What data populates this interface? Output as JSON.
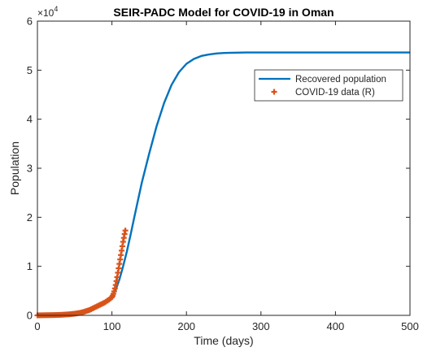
{
  "chart_data": {
    "type": "line",
    "title": "SEIR-PADC Model for COVID-19 in Oman",
    "xlabel": "Time (days)",
    "ylabel": "Population",
    "xlim": [
      0,
      500
    ],
    "ylim": [
      0,
      60000
    ],
    "x_ticks": [
      0,
      100,
      200,
      300,
      400,
      500
    ],
    "x_tick_labels": [
      "0",
      "100",
      "200",
      "300",
      "400",
      "500"
    ],
    "y_ticks": [
      0,
      10000,
      20000,
      30000,
      40000,
      50000,
      60000
    ],
    "y_tick_labels": [
      "0",
      "1",
      "2",
      "3",
      "4",
      "5",
      "6"
    ],
    "y_multiplier": {
      "base": "×10",
      "exponent": "4"
    },
    "grid": false,
    "legend_position": "top-right",
    "series": [
      {
        "name": "Recovered population",
        "style": "line",
        "color": "#0072BD",
        "x": [
          0,
          20,
          40,
          60,
          70,
          80,
          90,
          95,
          100,
          105,
          110,
          115,
          120,
          125,
          130,
          140,
          150,
          160,
          170,
          180,
          190,
          200,
          210,
          220,
          230,
          240,
          250,
          260,
          280,
          300,
          350,
          400,
          450,
          500
        ],
        "y": [
          0,
          30,
          150,
          600,
          1000,
          1600,
          2300,
          2900,
          3800,
          5200,
          7300,
          10000,
          13000,
          16400,
          20000,
          27000,
          33000,
          38600,
          43300,
          47000,
          49600,
          51300,
          52300,
          52900,
          53200,
          53400,
          53500,
          53550,
          53600,
          53600,
          53600,
          53600,
          53600,
          53600
        ]
      },
      {
        "name": "COVID-19 data (R)",
        "style": "marker",
        "marker": "plus",
        "color": "#D95319",
        "x": [
          0,
          2,
          4,
          6,
          8,
          10,
          12,
          14,
          16,
          18,
          20,
          22,
          24,
          26,
          28,
          30,
          32,
          34,
          36,
          38,
          40,
          42,
          44,
          46,
          48,
          50,
          52,
          54,
          56,
          58,
          60,
          62,
          64,
          66,
          68,
          70,
          72,
          74,
          76,
          78,
          80,
          82,
          84,
          86,
          88,
          90,
          92,
          94,
          96,
          98,
          100,
          101,
          102,
          103,
          104,
          105,
          106,
          107,
          108,
          109,
          110,
          111,
          112,
          113,
          114,
          115,
          116,
          117,
          118
        ],
        "y": [
          0,
          10,
          15,
          20,
          25,
          30,
          35,
          40,
          45,
          50,
          55,
          60,
          70,
          80,
          90,
          100,
          110,
          130,
          150,
          170,
          190,
          210,
          240,
          270,
          300,
          340,
          380,
          430,
          480,
          540,
          620,
          700,
          800,
          900,
          1000,
          1100,
          1250,
          1400,
          1550,
          1700,
          1850,
          2000,
          2150,
          2300,
          2450,
          2600,
          2800,
          3000,
          3200,
          3450,
          3700,
          4000,
          4400,
          4900,
          5500,
          6200,
          7000,
          7800,
          8700,
          9600,
          10500,
          11400,
          12300,
          13200,
          14100,
          15000,
          15800,
          16600,
          17300
        ]
      }
    ]
  }
}
